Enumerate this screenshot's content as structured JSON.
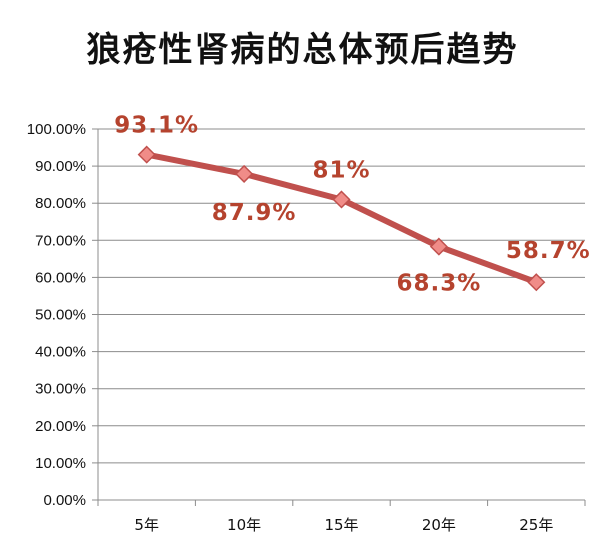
{
  "chart_data": {
    "type": "line",
    "title": "狼疮性肾病的总体预后趋势",
    "categories": [
      "5年",
      "10年",
      "15年",
      "20年",
      "25年"
    ],
    "series": [
      {
        "values": [
          93.1,
          87.9,
          81,
          68.3,
          58.7
        ]
      }
    ],
    "data_labels": [
      "93.1%",
      "87.9%",
      "81%",
      "68.3%",
      "58.7%"
    ],
    "y_ticks": [
      "0.00%",
      "10.00%",
      "20.00%",
      "30.00%",
      "40.00%",
      "50.00%",
      "60.00%",
      "70.00%",
      "80.00%",
      "90.00%",
      "100.00%"
    ],
    "ylim": [
      0,
      100
    ],
    "grid": true,
    "legend": "none",
    "colors": {
      "line": "#C0504D",
      "marker_fill": "#F08C88",
      "marker_stroke": "#C0504D",
      "label": "#B5432E",
      "grid": "#8C8C8C",
      "axis": "#8C8C8C"
    }
  }
}
